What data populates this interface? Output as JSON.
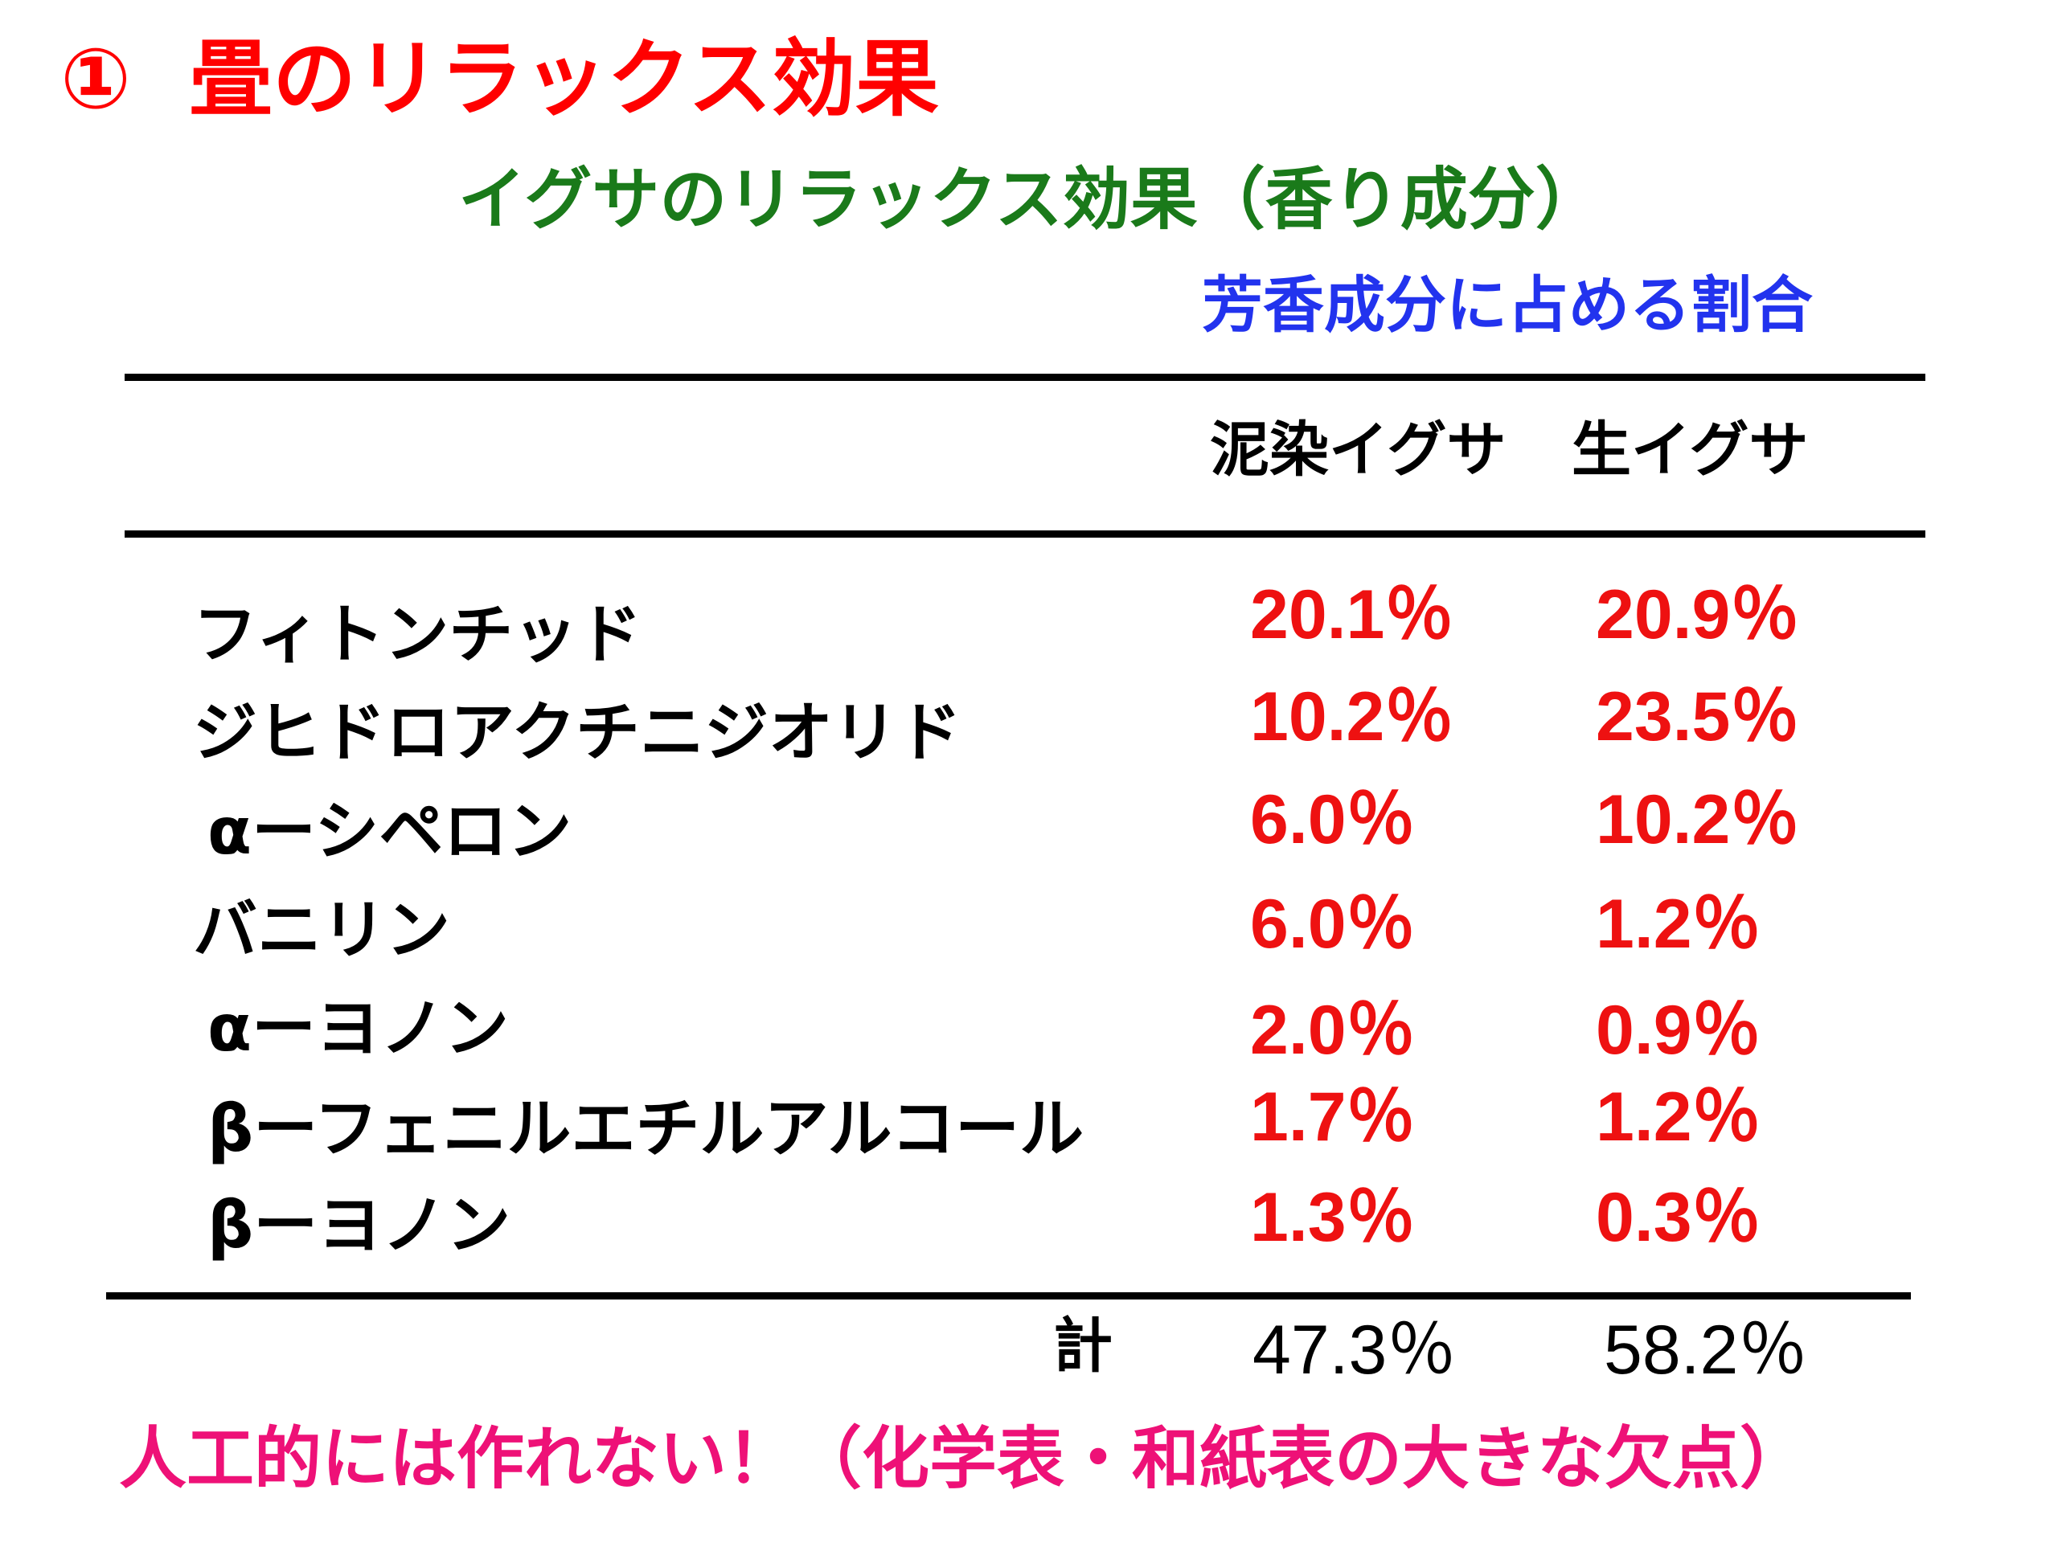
{
  "title": {
    "number": "①",
    "text": "畳のリラックス効果"
  },
  "subtitle": "イグサのリラックス効果（香り成分）",
  "caption": "芳香成分に占める割合",
  "table": {
    "columns": [
      "泥染イグサ",
      "生イグサ"
    ],
    "rows": [
      {
        "name": "フィトンチッド",
        "values": [
          "20.1％",
          "20.9％"
        ]
      },
      {
        "name": "ジヒドロアクチニジオリド",
        "values": [
          "10.2％",
          "23.5％"
        ]
      },
      {
        "name": "αーシペロン",
        "values": [
          "6.0％",
          "10.2％"
        ]
      },
      {
        "name": "バニリン",
        "values": [
          "6.0％",
          "1.2％"
        ]
      },
      {
        "name": "αーヨノン",
        "values": [
          "2.0％",
          "0.9％"
        ]
      },
      {
        "name": "βーフェニルエチルアルコール",
        "values": [
          "1.7％",
          "1.2％"
        ]
      },
      {
        "name": "βーヨノン",
        "values": [
          "1.3％",
          "0.3％"
        ]
      }
    ],
    "total_label": "計",
    "totals": [
      "47.3％",
      "58.2％"
    ]
  },
  "footer": "人工的には作れない！（化学表・和紙表の大きな欠点）",
  "colors": {
    "title": "#ff0000",
    "subtitle": "#1a7a1a",
    "caption": "#2233ee",
    "values": "#ee1111",
    "footer": "#ee1177"
  }
}
